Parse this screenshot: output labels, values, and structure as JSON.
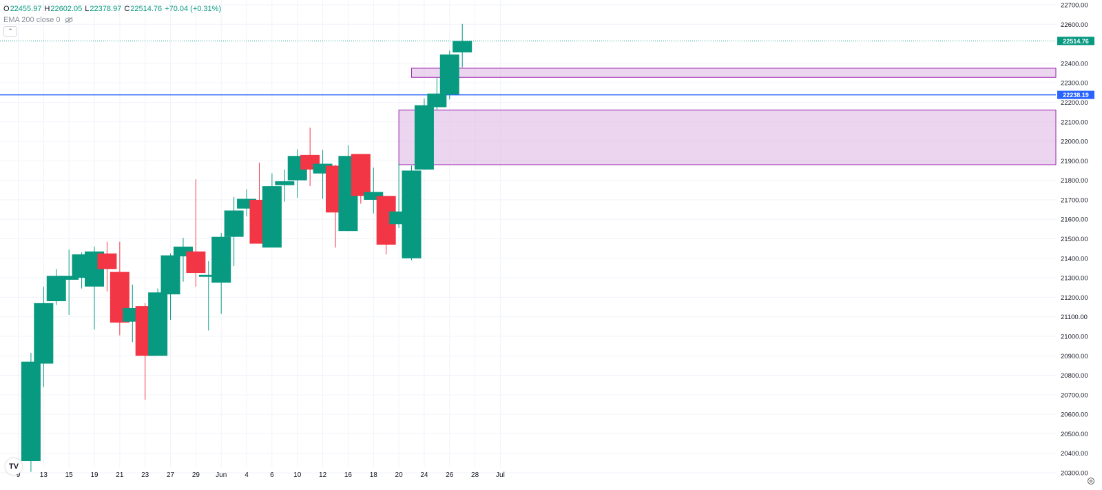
{
  "legend": {
    "open_label": "O",
    "open": "22455.97",
    "high_label": "H",
    "high": "22602.05",
    "low_label": "L",
    "low": "22378.97",
    "close_label": "C",
    "close": "22514.76",
    "change": "+70.04 (+0.31%)",
    "indicator": "EMA 200 close 0",
    "collapse_icon": "chevron-up-icon",
    "visibility_icon": "eye-off-icon"
  },
  "colors": {
    "up": "#089981",
    "down": "#f23645",
    "hline": "#2962ff",
    "zone_fill": "#e1bee7",
    "zone_border": "#9c27b0",
    "grid": "#f0f3fa",
    "axis_text": "#131722",
    "price_line": "#089981"
  },
  "chart_data": {
    "type": "candlestick",
    "x_ticks": [
      "9",
      "13",
      "15",
      "19",
      "21",
      "23",
      "27",
      "29",
      "Jun",
      "4",
      "6",
      "10",
      "12",
      "16",
      "18",
      "20",
      "24",
      "26",
      "28",
      "Jul"
    ],
    "candles": [
      {
        "o": 20360,
        "h": 20915,
        "l": 20305,
        "c": 20870
      },
      {
        "o": 20860,
        "h": 21255,
        "l": 20740,
        "c": 21170
      },
      {
        "o": 21180,
        "h": 21345,
        "l": 21160,
        "c": 21310
      },
      {
        "o": 21290,
        "h": 21445,
        "l": 21110,
        "c": 21310
      },
      {
        "o": 21300,
        "h": 21430,
        "l": 21245,
        "c": 21420
      },
      {
        "o": 21255,
        "h": 21460,
        "l": 21035,
        "c": 21435
      },
      {
        "o": 21425,
        "h": 21485,
        "l": 21230,
        "c": 21345
      },
      {
        "o": 21330,
        "h": 21485,
        "l": 21005,
        "c": 21070
      },
      {
        "o": 21075,
        "h": 21265,
        "l": 20970,
        "c": 21145
      },
      {
        "o": 21155,
        "h": 21170,
        "l": 20675,
        "c": 20900
      },
      {
        "o": 20900,
        "h": 21245,
        "l": 20900,
        "c": 21225
      },
      {
        "o": 21215,
        "h": 21425,
        "l": 21085,
        "c": 21415
      },
      {
        "o": 21410,
        "h": 21505,
        "l": 21280,
        "c": 21460
      },
      {
        "o": 21435,
        "h": 21805,
        "l": 21255,
        "c": 21325
      },
      {
        "o": 21305,
        "h": 21385,
        "l": 21030,
        "c": 21315
      },
      {
        "o": 21275,
        "h": 21530,
        "l": 21115,
        "c": 21510
      },
      {
        "o": 21510,
        "h": 21715,
        "l": 21360,
        "c": 21645
      },
      {
        "o": 21655,
        "h": 21755,
        "l": 21615,
        "c": 21705
      },
      {
        "o": 21700,
        "h": 21890,
        "l": 21480,
        "c": 21475
      },
      {
        "o": 21455,
        "h": 21835,
        "l": 21455,
        "c": 21770
      },
      {
        "o": 21775,
        "h": 21855,
        "l": 21690,
        "c": 21795
      },
      {
        "o": 21800,
        "h": 21960,
        "l": 21710,
        "c": 21925
      },
      {
        "o": 21930,
        "h": 22070,
        "l": 21770,
        "c": 21855
      },
      {
        "o": 21835,
        "h": 21955,
        "l": 21705,
        "c": 21885
      },
      {
        "o": 21875,
        "h": 21880,
        "l": 21455,
        "c": 21635
      },
      {
        "o": 21540,
        "h": 21980,
        "l": 21540,
        "c": 21925
      },
      {
        "o": 21935,
        "h": 21935,
        "l": 21680,
        "c": 21720
      },
      {
        "o": 21700,
        "h": 21865,
        "l": 21630,
        "c": 21740
      },
      {
        "o": 21720,
        "h": 21720,
        "l": 21420,
        "c": 21470
      },
      {
        "o": 21575,
        "h": 21890,
        "l": 21555,
        "c": 21640
      },
      {
        "o": 21400,
        "h": 21875,
        "l": 21390,
        "c": 21850
      },
      {
        "o": 21855,
        "h": 22220,
        "l": 21855,
        "c": 22185
      },
      {
        "o": 22175,
        "h": 22325,
        "l": 22160,
        "c": 22245
      },
      {
        "o": 22240,
        "h": 22465,
        "l": 22215,
        "c": 22445
      },
      {
        "o": 22455.97,
        "h": 22602.05,
        "l": 22378.97,
        "c": 22514.76
      }
    ],
    "candle_date_index": [
      1,
      2,
      3,
      4,
      5,
      6,
      7,
      8,
      9,
      10,
      11,
      12,
      13,
      14,
      15,
      16,
      17,
      18,
      19,
      20,
      21,
      22,
      23,
      24,
      25,
      26,
      27,
      28,
      29,
      30,
      31,
      32,
      33,
      34,
      35
    ],
    "y_ticks": [
      22700,
      22600,
      22400,
      22300,
      22200,
      22100,
      22000,
      21900,
      21800,
      21700,
      21600,
      21500,
      21400,
      21300,
      21200,
      21100,
      21000,
      20900,
      20800,
      20700,
      20600,
      20500,
      20400,
      20300
    ],
    "y_tick_labels": [
      "22700.00",
      "22600.00",
      "22400.00",
      "22300.00",
      "22200.00",
      "22100.00",
      "22000.00",
      "21900.00",
      "21800.00",
      "21700.00",
      "21600.00",
      "21500.00",
      "21400.00",
      "21300.00",
      "21200.00",
      "21100.00",
      "21000.00",
      "20900.00",
      "20800.00",
      "20700.00",
      "20600.00",
      "20500.00",
      "20400.00",
      "20300.00"
    ],
    "ylim": [
      20260,
      22740
    ],
    "horizontal_line": {
      "value": 22238.19,
      "label": "22238.19"
    },
    "last_price": {
      "value": 22514.76,
      "label": "22514.76"
    },
    "zones": [
      {
        "from_index": 31,
        "top": 22375,
        "bottom": 22328
      },
      {
        "from_index": 30,
        "top": 22160,
        "bottom": 21880
      }
    ]
  }
}
